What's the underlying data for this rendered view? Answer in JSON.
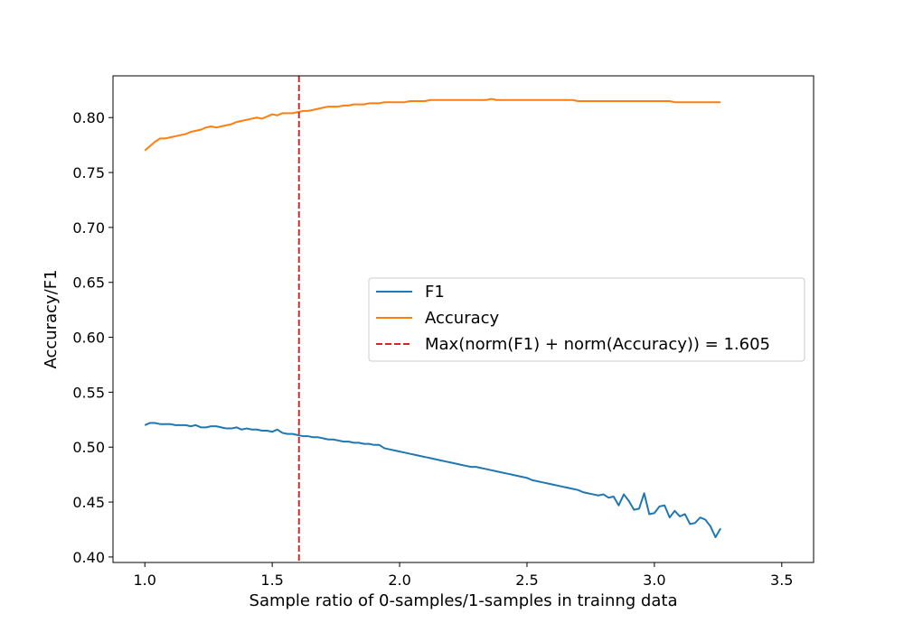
{
  "chart_data": {
    "type": "line",
    "title": "",
    "xlabel": "Sample ratio of 0-samples/1-samples in trainng data",
    "ylabel": "Accuracy/F1",
    "xlim": [
      0.875,
      3.625
    ],
    "ylim": [
      0.395,
      0.838
    ],
    "xticks": [
      1.0,
      1.5,
      2.0,
      2.5,
      3.0,
      3.5
    ],
    "xtick_labels": [
      "1.0",
      "1.5",
      "2.0",
      "2.5",
      "3.0",
      "3.5"
    ],
    "yticks": [
      0.4,
      0.45,
      0.5,
      0.55,
      0.6,
      0.65,
      0.7,
      0.75,
      0.8
    ],
    "ytick_labels": [
      "0.40",
      "0.45",
      "0.50",
      "0.55",
      "0.60",
      "0.65",
      "0.70",
      "0.75",
      "0.80"
    ],
    "grid": false,
    "legend_position": "center-right",
    "x_start": 1.0,
    "x_step": 0.02,
    "series": [
      {
        "name": "F1",
        "color": "#1f77b4",
        "values": [
          0.52,
          0.522,
          0.522,
          0.521,
          0.521,
          0.521,
          0.52,
          0.52,
          0.52,
          0.519,
          0.52,
          0.518,
          0.518,
          0.519,
          0.519,
          0.518,
          0.517,
          0.517,
          0.518,
          0.516,
          0.517,
          0.516,
          0.516,
          0.515,
          0.515,
          0.514,
          0.516,
          0.513,
          0.512,
          0.512,
          0.511,
          0.51,
          0.51,
          0.509,
          0.509,
          0.508,
          0.507,
          0.507,
          0.506,
          0.505,
          0.505,
          0.504,
          0.504,
          0.503,
          0.503,
          0.502,
          0.502,
          0.499,
          0.498,
          0.497,
          0.496,
          0.495,
          0.494,
          0.493,
          0.492,
          0.491,
          0.49,
          0.489,
          0.488,
          0.487,
          0.486,
          0.485,
          0.484,
          0.483,
          0.482,
          0.482,
          0.481,
          0.48,
          0.479,
          0.478,
          0.477,
          0.476,
          0.475,
          0.474,
          0.473,
          0.472,
          0.47,
          0.469,
          0.468,
          0.467,
          0.466,
          0.465,
          0.464,
          0.463,
          0.462,
          0.461,
          0.459,
          0.458,
          0.457,
          0.456,
          0.457,
          0.454,
          0.455,
          0.447,
          0.457,
          0.451,
          0.443,
          0.444,
          0.458,
          0.439,
          0.44,
          0.446,
          0.447,
          0.436,
          0.442,
          0.437,
          0.439,
          0.43,
          0.431,
          0.436,
          0.434,
          0.428,
          0.418,
          0.426
        ],
        "f1_note": ""
      },
      {
        "name": "Accuracy",
        "color": "#ff7f0e",
        "values": [
          0.77,
          0.774,
          0.778,
          0.781,
          0.781,
          0.782,
          0.783,
          0.784,
          0.785,
          0.787,
          0.788,
          0.789,
          0.791,
          0.792,
          0.791,
          0.792,
          0.793,
          0.794,
          0.796,
          0.797,
          0.798,
          0.799,
          0.8,
          0.799,
          0.801,
          0.803,
          0.802,
          0.804,
          0.804,
          0.804,
          0.805,
          0.806,
          0.806,
          0.807,
          0.808,
          0.809,
          0.81,
          0.81,
          0.81,
          0.811,
          0.811,
          0.812,
          0.812,
          0.812,
          0.813,
          0.813,
          0.813,
          0.814,
          0.814,
          0.814,
          0.814,
          0.814,
          0.815,
          0.815,
          0.815,
          0.815,
          0.816,
          0.816,
          0.816,
          0.816,
          0.816,
          0.816,
          0.816,
          0.816,
          0.816,
          0.816,
          0.816,
          0.816,
          0.817,
          0.816,
          0.816,
          0.816,
          0.816,
          0.816,
          0.816,
          0.816,
          0.816,
          0.816,
          0.816,
          0.816,
          0.816,
          0.816,
          0.816,
          0.816,
          0.816,
          0.815,
          0.815,
          0.815,
          0.815,
          0.815,
          0.815,
          0.815,
          0.815,
          0.815,
          0.815,
          0.815,
          0.815,
          0.815,
          0.815,
          0.815,
          0.815,
          0.815,
          0.815,
          0.815,
          0.814,
          0.814,
          0.814,
          0.814,
          0.814,
          0.814,
          0.814,
          0.814,
          0.814,
          0.814
        ]
      }
    ],
    "vline": {
      "name": "Max(norm(F1) + norm(Accuracy)) = 1.605",
      "x": 1.605,
      "color": "#d62728",
      "style": "dashed"
    }
  }
}
